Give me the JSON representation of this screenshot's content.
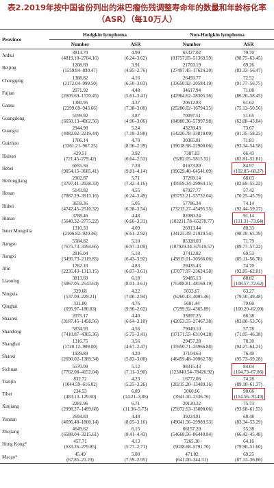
{
  "title": "表2.2019年按中国省份列出的淋巴瘤伤残调整寿命年的数量和年龄标化率（ASR）（每10万人）",
  "table": {
    "header": {
      "province": "Province",
      "hodgkin": "Hodgkin lymphoma",
      "non_hodgkin": "Non-Hodgkin lymphoma",
      "hodgkin_number": "Number",
      "hodgkin_asr": "ASR",
      "non_hodgkin_number": "Number",
      "non_hodgkin_asr": "ASR"
    },
    "highlighted_nhl_asr_rows": [
      9,
      13,
      18,
      25,
      27
    ],
    "rows": [
      [
        "Anhui",
        "3814.70",
        "(4819.10–2704.16)",
        "4.99",
        "(6.24–3.62)",
        "65327.02",
        "(81757.05–51369.59)",
        "79.70",
        "(98.75–63.45)"
      ],
      [
        "Beijing",
        "1208.69",
        "(1559.84–830.47)",
        "3.91",
        "(4.95–2.76)",
        "21703.19",
        "(27497.45–17624.20)",
        "69.26",
        "(83.33–56.47)"
      ],
      [
        "Chongqing",
        "1388.82",
        "(2172.04–999.50)",
        "4.16",
        "(6.50–3.03)",
        "26493.77",
        "(33650.92–20584.19)",
        "72.52",
        "(91.77–56.75)"
      ],
      [
        "Fujian",
        "2071.92",
        "(2605.69–1570.45)",
        "4.48",
        "(5.61–3.41)",
        "34617.94",
        "(42964.62–28305.36)",
        "71.08",
        "(86.20–58.45)"
      ],
      [
        "Gansu",
        "1380.95",
        "(2299.69–943.66)",
        "4.37",
        "(7.38–3.00)",
        "20612.83",
        "(25280.02–16794.25)",
        "61.62",
        "(75.12–50.56)"
      ],
      [
        "Guangdong",
        "5199.92",
        "(6650.13–4062.56)",
        "3.87",
        "(4.96–3.06)",
        "70097.51",
        "(84980.36–57997.98)",
        "51.65",
        "(62.08–43.04)"
      ],
      [
        "Guangxi",
        "2944.98",
        "(4082.02–2219.44)",
        "5.24",
        "(7.19–3.98)",
        "43239.43",
        "(54220.78–33819.09)",
        "73.67",
        "(91.35–58.25)"
      ],
      [
        "Guizhou",
        "1706.14",
        "(3361.21–967.25)",
        "4.70",
        "(8.36–2.39)",
        "30365.81",
        "(39618.98–22900.06)",
        "71.81",
        "(93.34–54.58)"
      ],
      [
        "Hainan",
        "429.51",
        "(721.45–279.42)",
        "3.92",
        "(6.64–2.53)",
        "7387.03",
        "(9282.05–5815.52)",
        "66.43",
        "(82.81–52.81)"
      ],
      [
        "Hebei",
        "6655.56",
        "(9054.15–3685.41)",
        "7.28",
        "(9.81–4.14)",
        "81673.89",
        "(99629.40–64541.09)",
        "84.97",
        "(102.85–68.27)"
      ],
      [
        "Heilongjiang",
        "2902.87",
        "(3797.41–2038.33)",
        "5.71",
        "(7.42–4.16)",
        "37269.14",
        "(45959.34–29964.15)",
        "68.03",
        "(82.69–55.22)"
      ],
      [
        "Henan",
        "5143.82",
        "(7087.29–3913.16)",
        "4.55",
        "(6.24–3.49)",
        "67927.77",
        "(83753.21–53732.04)",
        "57.42",
        "(70.25–45.79)"
      ],
      [
        "Hubei",
        "3659.36",
        "(4742.45–2510.32)",
        "5.05",
        "(6.38–3.54)",
        "57786.34",
        "(73213.27–45495.55)",
        "74.14",
        "(92.44–59.27)"
      ],
      [
        "Hunan",
        "3788.46",
        "(5640.32–2775.22)",
        "4.48",
        "(6.66–3.31)",
        "82080.24",
        "(102211.78–65278.77)",
        "91.14",
        "(111.31–73.64)"
      ],
      [
        "Inner Mongolia",
        "1310.33",
        "(2106.82–920.46)",
        "4.09",
        "(6.61–2.92)",
        "26913.44",
        "(34125.39–21929.54)",
        "80.33",
        "(98.19–65.39)"
      ],
      [
        "Jiangsu",
        "5584.82",
        "(7675.73–3194.66)",
        "5.10",
        "(6.97–3.09)",
        "85328.03",
        "(107929.34–67519.57)",
        "71.79",
        "(89.77–57.22)"
      ],
      [
        "Jiangxi",
        "2816.04",
        "(3495.73–2119.85)",
        "5.18",
        "(6.43–3.92)",
        "37412.82",
        "(45815.01–30566.06)",
        "69.53",
        "(85.11–56.78)"
      ],
      [
        "Jilin",
        "1762.10",
        "(2235.43–1313.15)",
        "4.83",
        "(6.07–3.61)",
        "29435.43",
        "(37077.97–23624.58)",
        "74.70",
        "(92.85–62.01)"
      ],
      [
        "Liaoning",
        "3813.69",
        "(5067.05–2543.64)",
        "6.18",
        "(8.01–3.61)",
        "59485.13",
        "(75308.81–48160.19)",
        "88.82",
        "(108.57–72.62)"
      ],
      [
        "Ningxia",
        "329.68",
        "(537.09–229.21)",
        "4.22",
        "(7.00–2.94)",
        "5033.67",
        "(6260.43–4005.46)",
        "63.27",
        "(79.50–49.48)"
      ],
      [
        "Qinghai",
        "331.80",
        "(695.97–180.83)",
        "4.76",
        "(9.96–2.62)",
        "5681.44",
        "(7299.92–4365.89)",
        "79.60",
        "(100.20–62.09)"
      ],
      [
        "Shaanxi",
        "2075.17",
        "(3187.45–1458.56)",
        "4.40",
        "(6.64–3.10)",
        "33897.25",
        "(42053.55–27467.38)",
        "66.38",
        "(83.00–53.76)"
      ],
      [
        "Shandong",
        "5834.93",
        "(7410.87–4305.36)",
        "4.56",
        "(5.75–3.41)",
        "79049.10",
        "(97171.55–63104.28)",
        "57.78",
        "(71.05–46.38)"
      ],
      [
        "Shanghai",
        "1316.75",
        "(1720.12–909.00)",
        "3.56",
        "(4.67–2.47)",
        "29457.28",
        "(35950.71–23966.88)",
        "78.30",
        "(94.27–64.21)"
      ],
      [
        "Shanxi",
        "1939.89",
        "(2690.02–1389.34)",
        "4.20",
        "(5.82–3.00)",
        "37104.63",
        "(46459.48–30062.78)",
        "76.49",
        "(95.73–59.28)"
      ],
      [
        "Sichuan",
        "5570.09",
        "(7762.08–4152.04)",
        "5.12",
        "(7.11–3.90)",
        "98315.43",
        "(123040.54–78426.92)",
        "84.04",
        "(104.73–67.86)"
      ],
      [
        "Tianjin",
        "832.72",
        "(1044.59–616.02)",
        "4.23",
        "(5.25–3.26)",
        "16772.06",
        "(20215.20–13489.16)",
        "74.28",
        "(89.10–61.37)"
      ],
      [
        "Tibet",
        "234.53",
        "(483.13–129.60)",
        "6.89",
        "(14.21–3.86)",
        "3060.66",
        "(3941.10–2336.76)",
        "90.66",
        "(114.56–70.49)"
      ],
      [
        "Xinjiang",
        "2281.96",
        "(2998.27–1499.68)",
        "6.71",
        "(11.36–5.73)",
        "20120.32",
        "(25972.63–15898.06)",
        "75.73",
        "(93.68–61.53)"
      ],
      [
        "Yunnan",
        "2694.83",
        "(4696.48–1800.14)",
        "4.48",
        "(8.05–3.16)",
        "39224.81",
        "(49041.56–29989.53)",
        "68.48",
        "(83.34–53.29)"
      ],
      [
        "Zhejiang",
        "4649.62",
        "(6588.04–3215.61)",
        "6.15",
        "(8.41–4.43)",
        "66157.20",
        "(54668.56–86440.84)",
        "55.38",
        "(66.42–45.48)"
      ],
      [
        "Hong Kong*",
        "457.71",
        "(633.26–279.85)",
        "4.13",
        "(5.77–2.71)",
        "7265.30",
        "(9038.68–5791.70)",
        "64.16",
        "(79.90–51.60)"
      ],
      [
        "Macao*",
        "45.49",
        "(67.85–21.23)",
        "5.00",
        "(7.59–2.95)",
        "471.82",
        "(641.00–344.31)",
        "69.25",
        "(87.13–36.86)"
      ]
    ]
  }
}
